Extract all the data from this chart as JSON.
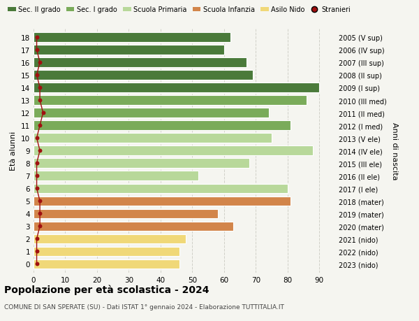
{
  "ages": [
    18,
    17,
    16,
    15,
    14,
    13,
    12,
    11,
    10,
    9,
    8,
    7,
    6,
    5,
    4,
    3,
    2,
    1,
    0
  ],
  "values": [
    62,
    60,
    67,
    69,
    90,
    86,
    74,
    81,
    75,
    88,
    68,
    52,
    80,
    81,
    58,
    63,
    48,
    46,
    46
  ],
  "stranieri": [
    1,
    1,
    2,
    1,
    2,
    2,
    3,
    2,
    1,
    2,
    1,
    1,
    1,
    2,
    2,
    2,
    1,
    1,
    1
  ],
  "right_labels": [
    "2005 (V sup)",
    "2006 (IV sup)",
    "2007 (III sup)",
    "2008 (II sup)",
    "2009 (I sup)",
    "2010 (III med)",
    "2011 (II med)",
    "2012 (I med)",
    "2013 (V ele)",
    "2014 (IV ele)",
    "2015 (III ele)",
    "2016 (II ele)",
    "2017 (I ele)",
    "2018 (mater)",
    "2019 (mater)",
    "2020 (mater)",
    "2021 (nido)",
    "2022 (nido)",
    "2023 (nido)"
  ],
  "bar_colors": [
    "#4a7a3a",
    "#4a7a3a",
    "#4a7a3a",
    "#4a7a3a",
    "#4a7a3a",
    "#7aab5a",
    "#7aab5a",
    "#7aab5a",
    "#b8d89a",
    "#b8d89a",
    "#b8d89a",
    "#b8d89a",
    "#b8d89a",
    "#d2854a",
    "#d2854a",
    "#d2854a",
    "#f0d878",
    "#f0d878",
    "#f0d878"
  ],
  "stranieri_color": "#a01010",
  "legend_labels": [
    "Sec. II grado",
    "Sec. I grado",
    "Scuola Primaria",
    "Scuola Infanzia",
    "Asilo Nido",
    "Stranieri"
  ],
  "legend_colors": [
    "#4a7a3a",
    "#7aab5a",
    "#b8d89a",
    "#d2854a",
    "#f0d878",
    "#a01010"
  ],
  "title": "Popolazione per età scolastica - 2024",
  "subtitle": "COMUNE DI SAN SPERATE (SU) - Dati ISTAT 1° gennaio 2024 - Elaborazione TUTTITALIA.IT",
  "ylabel": "Età alunni",
  "right_ylabel": "Anni di nascita",
  "xlabel_ticks": [
    0,
    10,
    20,
    30,
    40,
    50,
    60,
    70,
    80,
    90
  ],
  "xlim": [
    0,
    95
  ],
  "background_color": "#f5f5f0",
  "grid_color": "#d0d0c8"
}
